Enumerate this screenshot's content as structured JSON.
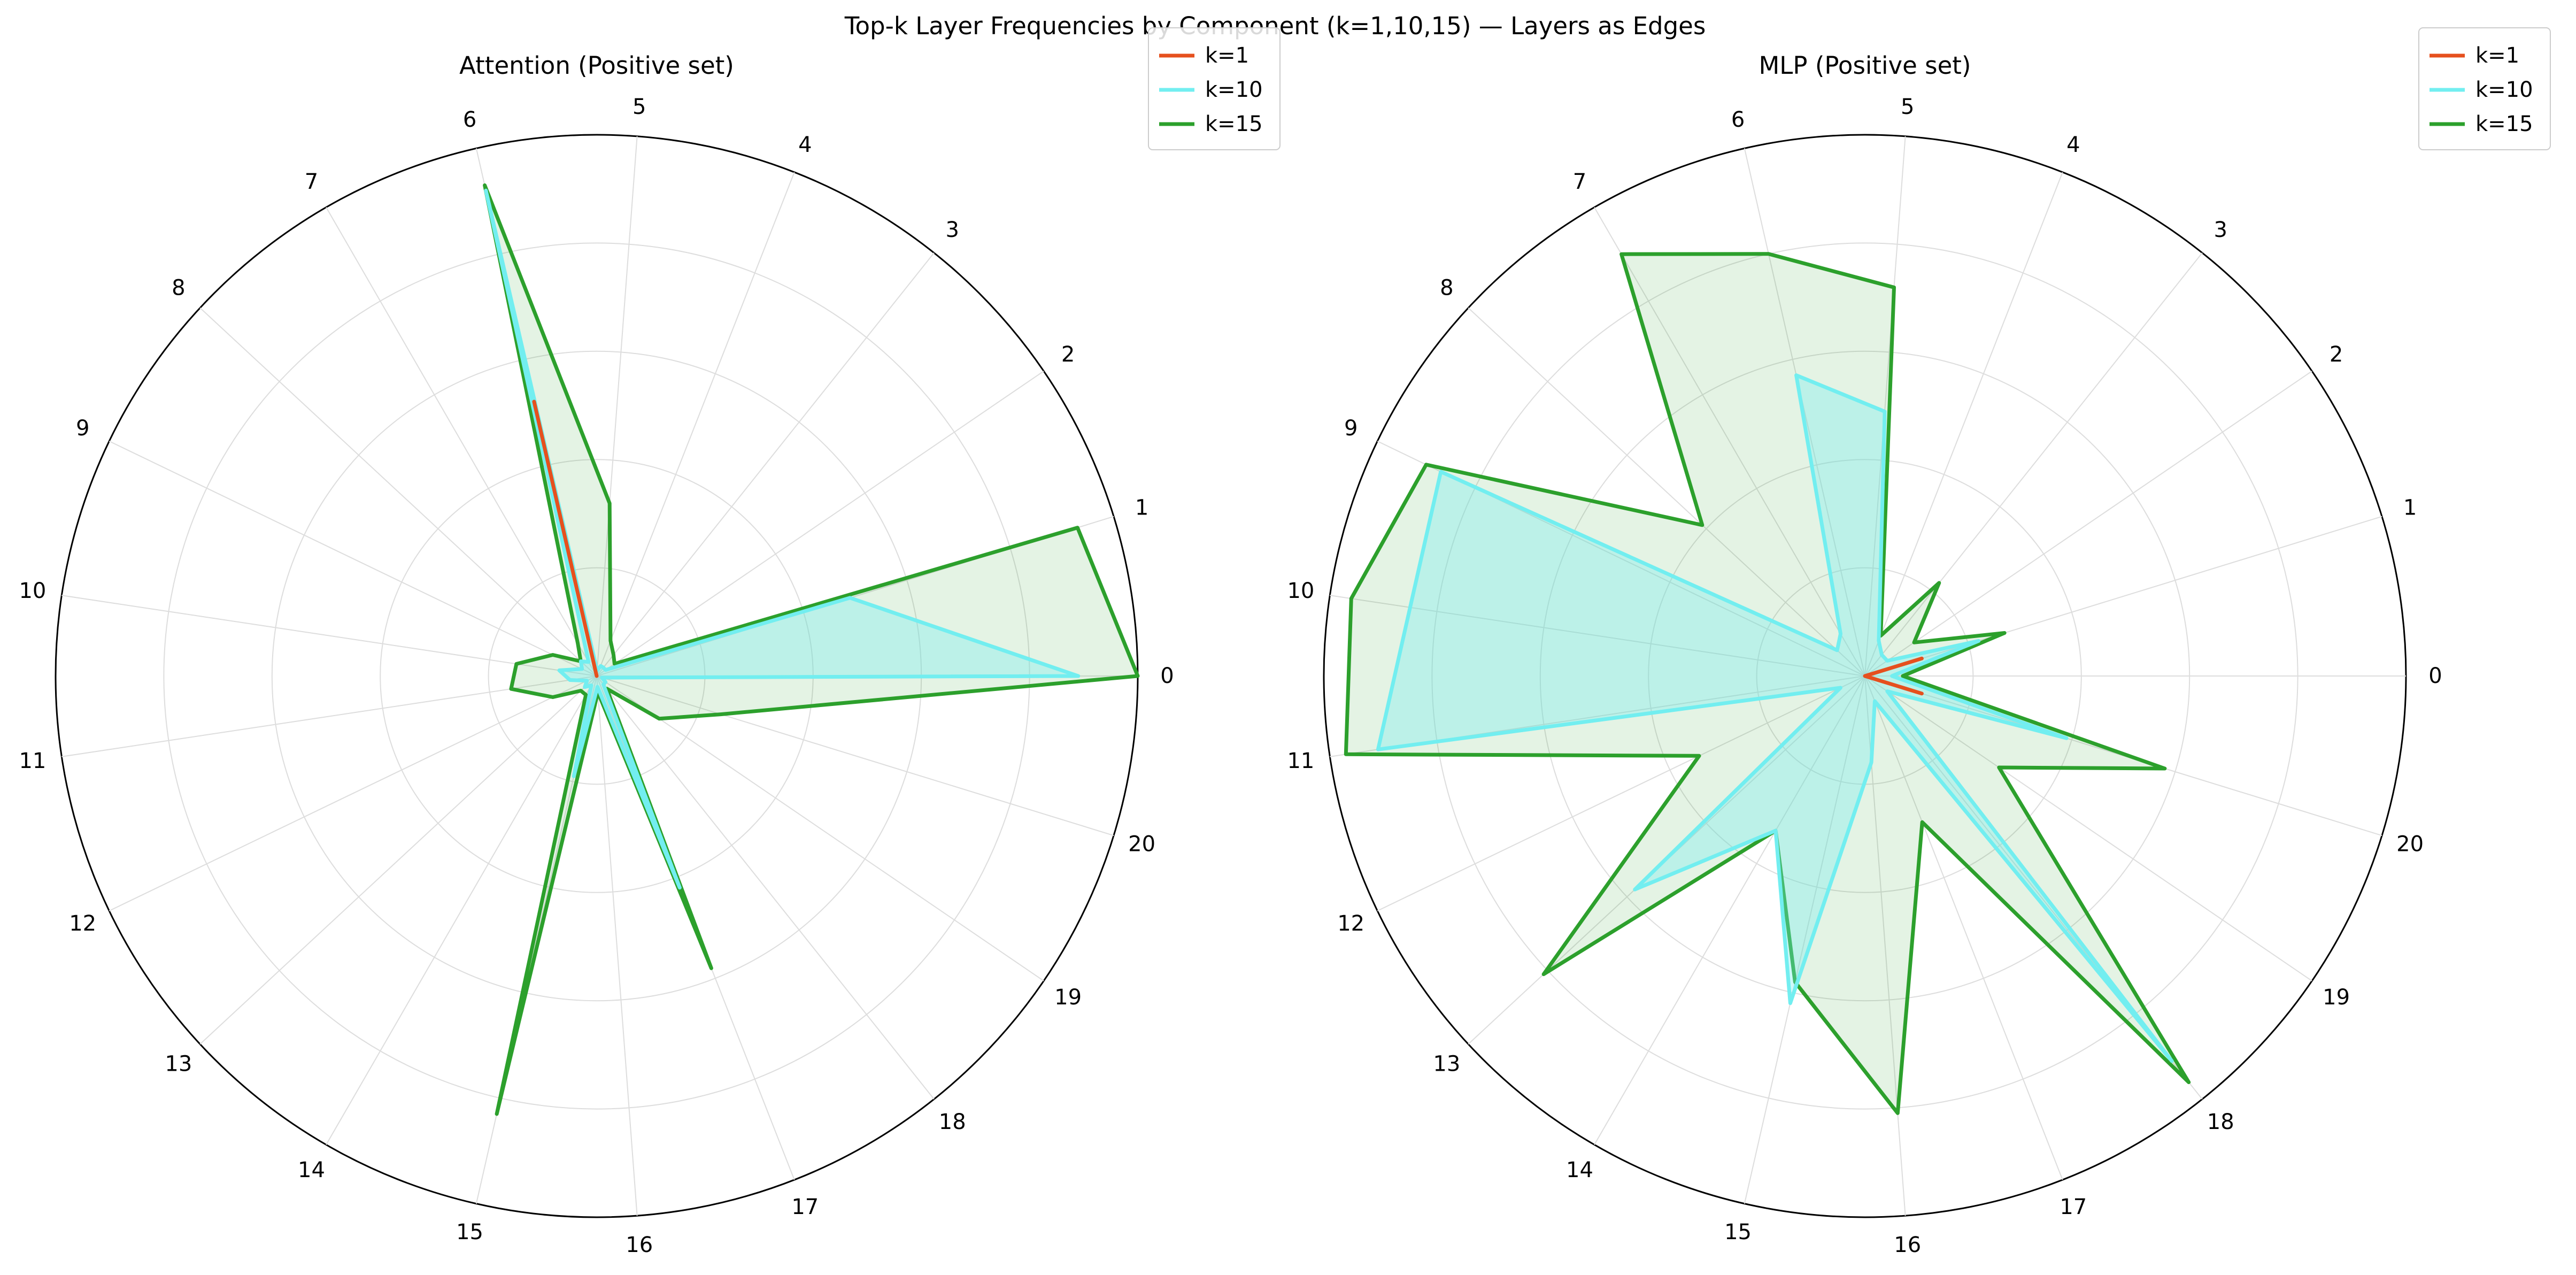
{
  "figure": {
    "title": "Top-k Layer Frequencies by Component (k=1,10,15) — Layers as Edges"
  },
  "chart_data": [
    {
      "type": "radar",
      "title": "Attention (Positive set)",
      "categories": [
        "0",
        "1",
        "2",
        "3",
        "4",
        "5",
        "6",
        "7",
        "8",
        "9",
        "10",
        "11",
        "12",
        "13",
        "14",
        "15",
        "16",
        "17",
        "18",
        "19",
        "20"
      ],
      "rmax": 1.0,
      "ring_values": [
        0.2,
        0.4,
        0.6,
        0.8,
        1.0
      ],
      "grid": true,
      "legend": "top-right",
      "series": [
        {
          "name": "k=1",
          "color": "#e6501e",
          "fill": false,
          "values": [
            0.0,
            0.0,
            0.0,
            0.0,
            0.0,
            0.0,
            0.52,
            0.0,
            0.0,
            0.0,
            0.0,
            0.0,
            0.0,
            0.0,
            0.0,
            0.0,
            0.0,
            0.0,
            0.0,
            0.0,
            0.0
          ]
        },
        {
          "name": "k=10",
          "color": "#72eef0",
          "fill": true,
          "fill_opacity": 0.35,
          "values": [
            0.89,
            0.49,
            0.02,
            0.02,
            0.02,
            0.01,
            0.92,
            0.03,
            0.04,
            0.03,
            0.07,
            0.05,
            0.02,
            0.03,
            0.02,
            0.19,
            0.02,
            0.42,
            0.02,
            0.02,
            0.01
          ]
        },
        {
          "name": "k=15",
          "color": "#2ca02c",
          "fill": true,
          "fill_opacity": 0.13,
          "values": [
            1.0,
            0.93,
            0.04,
            0.05,
            0.07,
            0.32,
            0.93,
            0.07,
            0.04,
            0.09,
            0.15,
            0.16,
            0.09,
            0.04,
            0.04,
            0.83,
            0.03,
            0.58,
            0.03,
            0.14,
            0.24
          ]
        }
      ]
    },
    {
      "type": "radar",
      "title": "MLP (Positive set)",
      "categories": [
        "0",
        "1",
        "2",
        "3",
        "4",
        "5",
        "6",
        "7",
        "8",
        "9",
        "10",
        "11",
        "12",
        "13",
        "14",
        "15",
        "16",
        "17",
        "18",
        "19",
        "20"
      ],
      "rmax": 1.0,
      "ring_values": [
        0.2,
        0.4,
        0.6,
        0.8,
        1.0
      ],
      "grid": true,
      "legend": "top-right",
      "series": [
        {
          "name": "k=1",
          "color": "#e6501e",
          "fill": false,
          "values": [
            0.0,
            0.11,
            0.0,
            0.0,
            0.0,
            0.0,
            0.0,
            0.0,
            0.0,
            0.0,
            0.0,
            0.0,
            0.0,
            0.0,
            0.0,
            0.0,
            0.0,
            0.0,
            0.0,
            0.0,
            0.11
          ]
        },
        {
          "name": "k=10",
          "color": "#72eef0",
          "fill": true,
          "fill_opacity": 0.35,
          "values": [
            0.05,
            0.22,
            0.05,
            0.05,
            0.07,
            0.49,
            0.57,
            0.09,
            0.07,
            0.87,
            0.85,
            0.91,
            0.05,
            0.58,
            0.33,
            0.62,
            0.16,
            0.05,
            0.91,
            0.05,
            0.39
          ]
        },
        {
          "name": "k=15",
          "color": "#2ca02c",
          "fill": true,
          "fill_opacity": 0.13,
          "values": [
            0.07,
            0.27,
            0.11,
            0.22,
            0.08,
            0.72,
            0.8,
            0.9,
            0.41,
            0.9,
            0.96,
            0.97,
            0.34,
            0.81,
            0.33,
            0.58,
            0.81,
            0.29,
            0.96,
            0.3,
            0.58
          ]
        }
      ]
    }
  ]
}
